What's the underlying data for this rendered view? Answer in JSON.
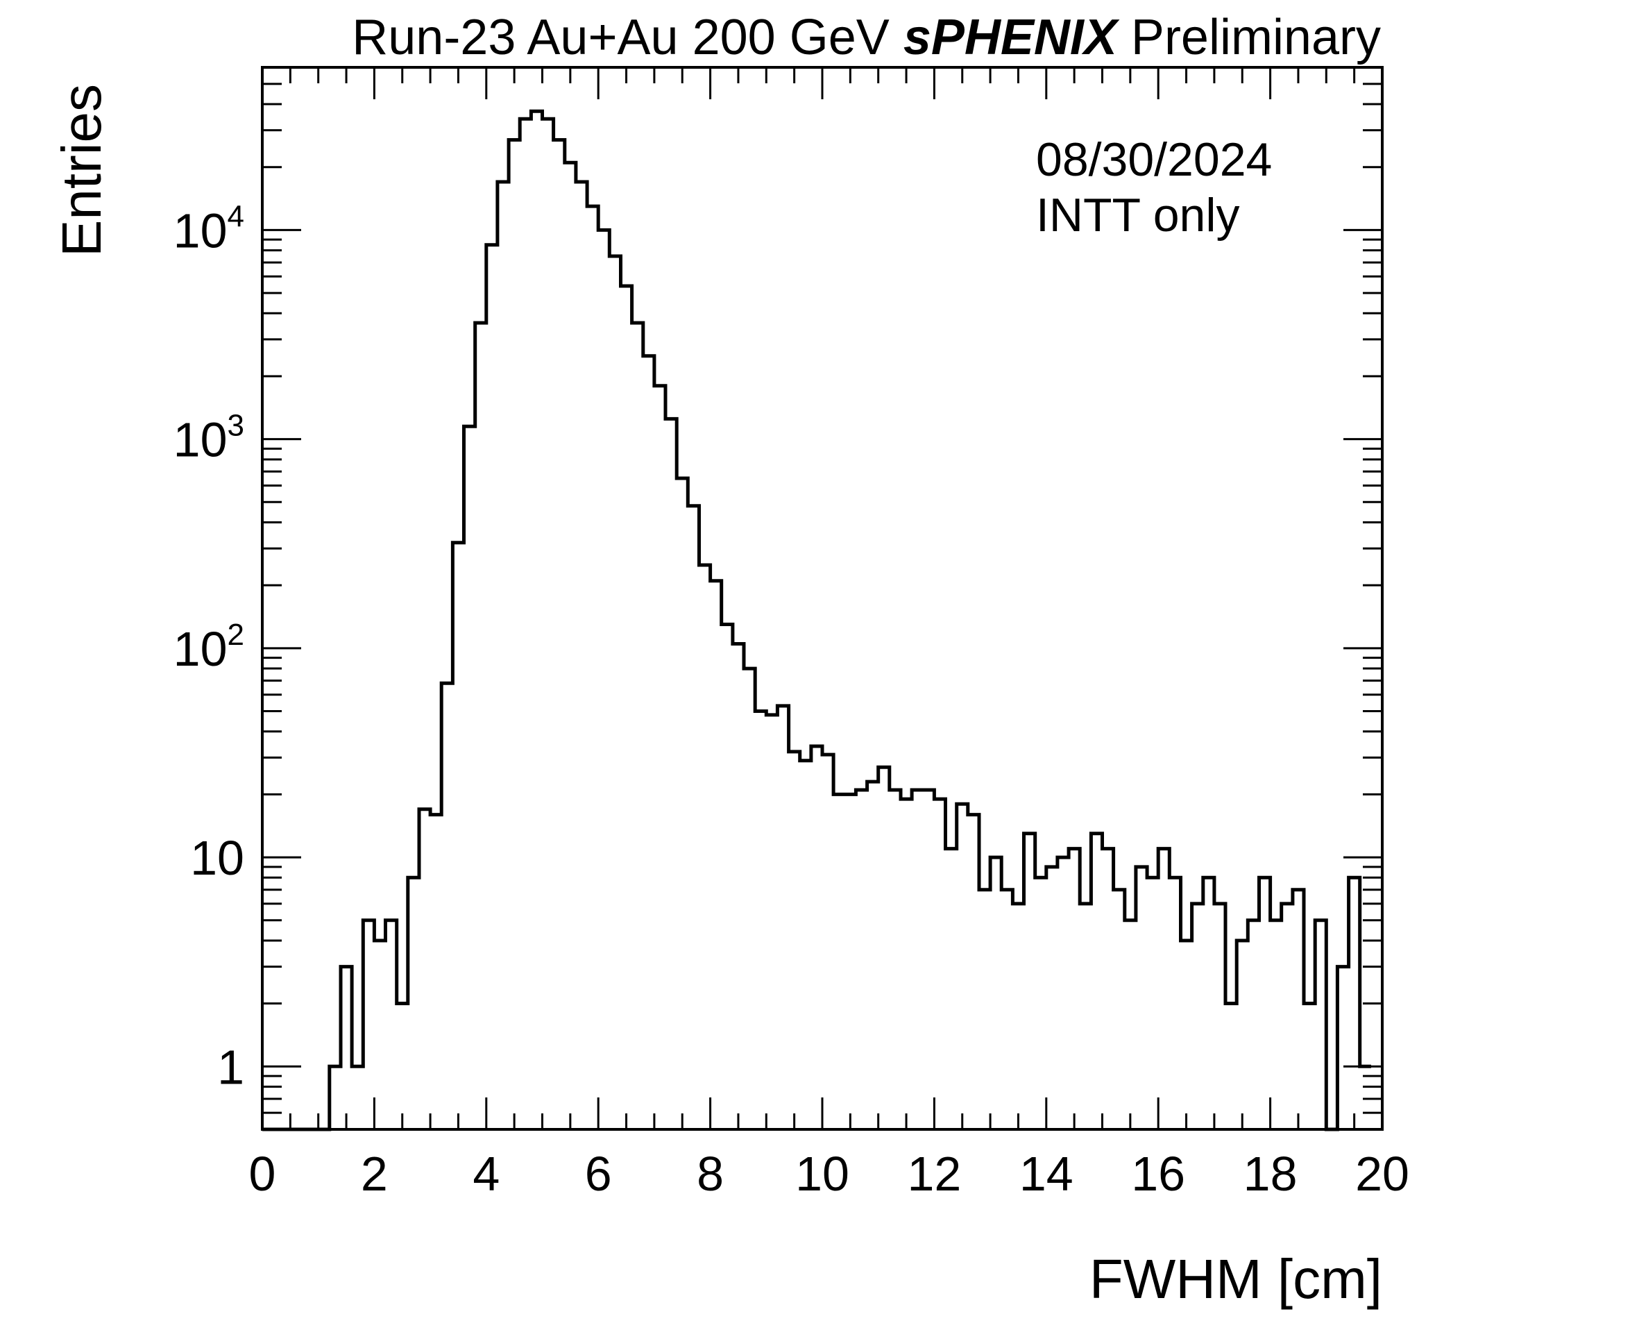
{
  "chart_data": {
    "type": "histogram",
    "title_parts": {
      "prefix": "Run-23 Au+Au 200 GeV ",
      "experiment": "sPHENIX",
      "suffix": " Preliminary"
    },
    "xlabel": "FWHM [cm]",
    "ylabel": "Entries",
    "xlim": [
      0,
      20
    ],
    "ylim": [
      0.5,
      60000
    ],
    "yscale": "log",
    "bin_width": 0.2,
    "x_ticks": [
      "0",
      "2",
      "4",
      "6",
      "8",
      "10",
      "12",
      "14",
      "16",
      "18",
      "20"
    ],
    "y_ticks": [
      {
        "value": 1,
        "base": "1",
        "exp": ""
      },
      {
        "value": 10,
        "base": "10",
        "exp": ""
      },
      {
        "value": 100,
        "base": "10",
        "exp": "2"
      },
      {
        "value": 1000,
        "base": "10",
        "exp": "3"
      },
      {
        "value": 10000,
        "base": "10",
        "exp": "4"
      }
    ],
    "annotations": [
      "08/30/2024",
      "INTT only"
    ],
    "line_color": "#000000",
    "bin_edges_start": 0,
    "counts": [
      0,
      0,
      0,
      0,
      0,
      0,
      1,
      3,
      1,
      5,
      4,
      5,
      2,
      8,
      17,
      16,
      68,
      320,
      1150,
      3600,
      8500,
      17000,
      27000,
      34000,
      37000,
      34000,
      27000,
      21000,
      17000,
      13000,
      10000,
      7500,
      5400,
      3600,
      2500,
      1800,
      1250,
      650,
      480,
      250,
      210,
      130,
      105,
      80,
      50,
      48,
      53,
      32,
      29,
      34,
      31,
      20,
      20,
      21,
      23,
      27,
      21,
      19,
      21,
      21,
      19,
      11,
      18,
      16,
      7,
      10,
      7,
      6,
      13,
      8,
      9,
      10,
      11,
      6,
      13,
      11,
      7,
      5,
      9,
      8,
      11,
      8,
      4,
      6,
      8,
      6,
      2,
      4,
      5,
      8,
      5,
      6,
      7,
      2,
      5,
      0,
      3,
      8,
      1
    ]
  }
}
